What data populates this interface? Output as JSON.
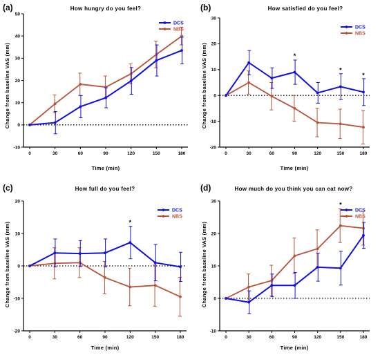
{
  "colors": {
    "DCS": "#1010e0",
    "NBS": "#b85238",
    "axis": "#000000"
  },
  "chart_data": [
    {
      "panel": "(a)",
      "type": "line",
      "title": "How hungry do you feel?",
      "xlabel": "Time (min)",
      "ylabel": "Change from baseline VAS (mm)",
      "x": [
        0,
        30,
        60,
        90,
        120,
        150,
        180
      ],
      "x_ticks": [
        "0",
        "30",
        "60",
        "90",
        "120",
        "150",
        "180"
      ],
      "y_ticks": [
        "-10",
        "0",
        "10",
        "20",
        "30",
        "40",
        "50"
      ],
      "ylim": [
        -10,
        50
      ],
      "zero_line": "dotted",
      "legend": "top-right",
      "series": [
        {
          "name": "DCS",
          "values": [
            0,
            1,
            8.2,
            12.2,
            19.8,
            29,
            33.5
          ],
          "error": [
            0,
            5,
            5,
            4.5,
            6,
            7,
            6
          ]
        },
        {
          "name": "NBS",
          "values": [
            0,
            9.5,
            18.3,
            17,
            23,
            31.7,
            40
          ],
          "error": [
            0,
            4,
            5,
            5,
            4.5,
            6,
            4
          ]
        }
      ],
      "significance": []
    },
    {
      "panel": "(b)",
      "type": "line",
      "title": "How satisfied do you feel?",
      "xlabel": "Time (min)",
      "ylabel": "Change from baseline VAS (mm)",
      "x": [
        0,
        30,
        60,
        90,
        120,
        150,
        180
      ],
      "x_ticks": [
        "0",
        "30",
        "60",
        "90",
        "120",
        "150",
        "180"
      ],
      "y_ticks": [
        "-20",
        "-10",
        "0",
        "10",
        "20",
        "30"
      ],
      "ylim": [
        -20,
        30
      ],
      "zero_line": "dotted",
      "legend": "top-right",
      "series": [
        {
          "name": "DCS",
          "values": [
            0,
            12.7,
            6.7,
            9,
            1,
            3.4,
            1.3
          ],
          "error": [
            0,
            4.7,
            4,
            4.7,
            4,
            5,
            5.2
          ]
        },
        {
          "name": "NBS",
          "values": [
            0,
            5,
            -0.3,
            -5,
            -10.5,
            -11,
            -12.3
          ],
          "error": [
            0,
            4.5,
            5.3,
            5,
            5.5,
            5.7,
            6.5
          ]
        }
      ],
      "significance": [
        {
          "x": 90,
          "y": 14.5,
          "label": "*"
        },
        {
          "x": 150,
          "y": 9,
          "label": "*"
        },
        {
          "x": 180,
          "y": 7,
          "label": "*"
        }
      ]
    },
    {
      "panel": "(c)",
      "type": "line",
      "title": "How full do you feel?",
      "xlabel": "Time (min)",
      "ylabel": "Change from baseline VAS (mm)",
      "x": [
        0,
        30,
        60,
        90,
        120,
        150,
        180
      ],
      "x_ticks": [
        "0",
        "30",
        "60",
        "90",
        "120",
        "150",
        "180"
      ],
      "y_ticks": [
        "-20",
        "-10",
        "0",
        "10",
        "20"
      ],
      "ylim": [
        -20,
        20
      ],
      "zero_line": "dotted",
      "legend": "top-right",
      "series": [
        {
          "name": "DCS",
          "values": [
            0,
            4,
            3.8,
            4,
            7.2,
            1,
            -0.3
          ],
          "error": [
            0,
            4.3,
            4,
            4.3,
            5,
            5.6,
            4.5
          ]
        },
        {
          "name": "NBS",
          "values": [
            0,
            0.8,
            1,
            -3.6,
            -6.5,
            -6,
            -9.5
          ],
          "error": [
            0,
            4.8,
            4.6,
            5,
            5.8,
            6.4,
            6
          ]
        }
      ],
      "significance": [
        {
          "x": 120,
          "y": 12.8,
          "label": "*"
        }
      ]
    },
    {
      "panel": "(d)",
      "type": "line",
      "title": "How much do you think you can eat now?",
      "xlabel": "Time (min)",
      "ylabel": "Change from baseline VAS (mm)",
      "x": [
        0,
        30,
        60,
        90,
        120,
        150,
        180
      ],
      "x_ticks": [
        "0",
        "30",
        "60",
        "90",
        "120",
        "150",
        "180"
      ],
      "y_ticks": [
        "-10",
        "0",
        "10",
        "20",
        "30"
      ],
      "ylim": [
        -10,
        30
      ],
      "zero_line": "dotted",
      "legend": "top-right",
      "series": [
        {
          "name": "DCS",
          "values": [
            0,
            -1.2,
            4,
            4,
            9.6,
            9.3,
            19.4
          ],
          "error": [
            0,
            3.5,
            3.5,
            4,
            4.3,
            5.2,
            4
          ]
        },
        {
          "name": "NBS",
          "values": [
            0,
            3.5,
            5.5,
            13.1,
            15.3,
            22.4,
            21.6
          ],
          "error": [
            0,
            4,
            4.7,
            5.5,
            5.8,
            5.2,
            5.2
          ]
        }
      ],
      "significance": [
        {
          "x": 150,
          "y": 28.2,
          "label": "*"
        }
      ]
    }
  ]
}
